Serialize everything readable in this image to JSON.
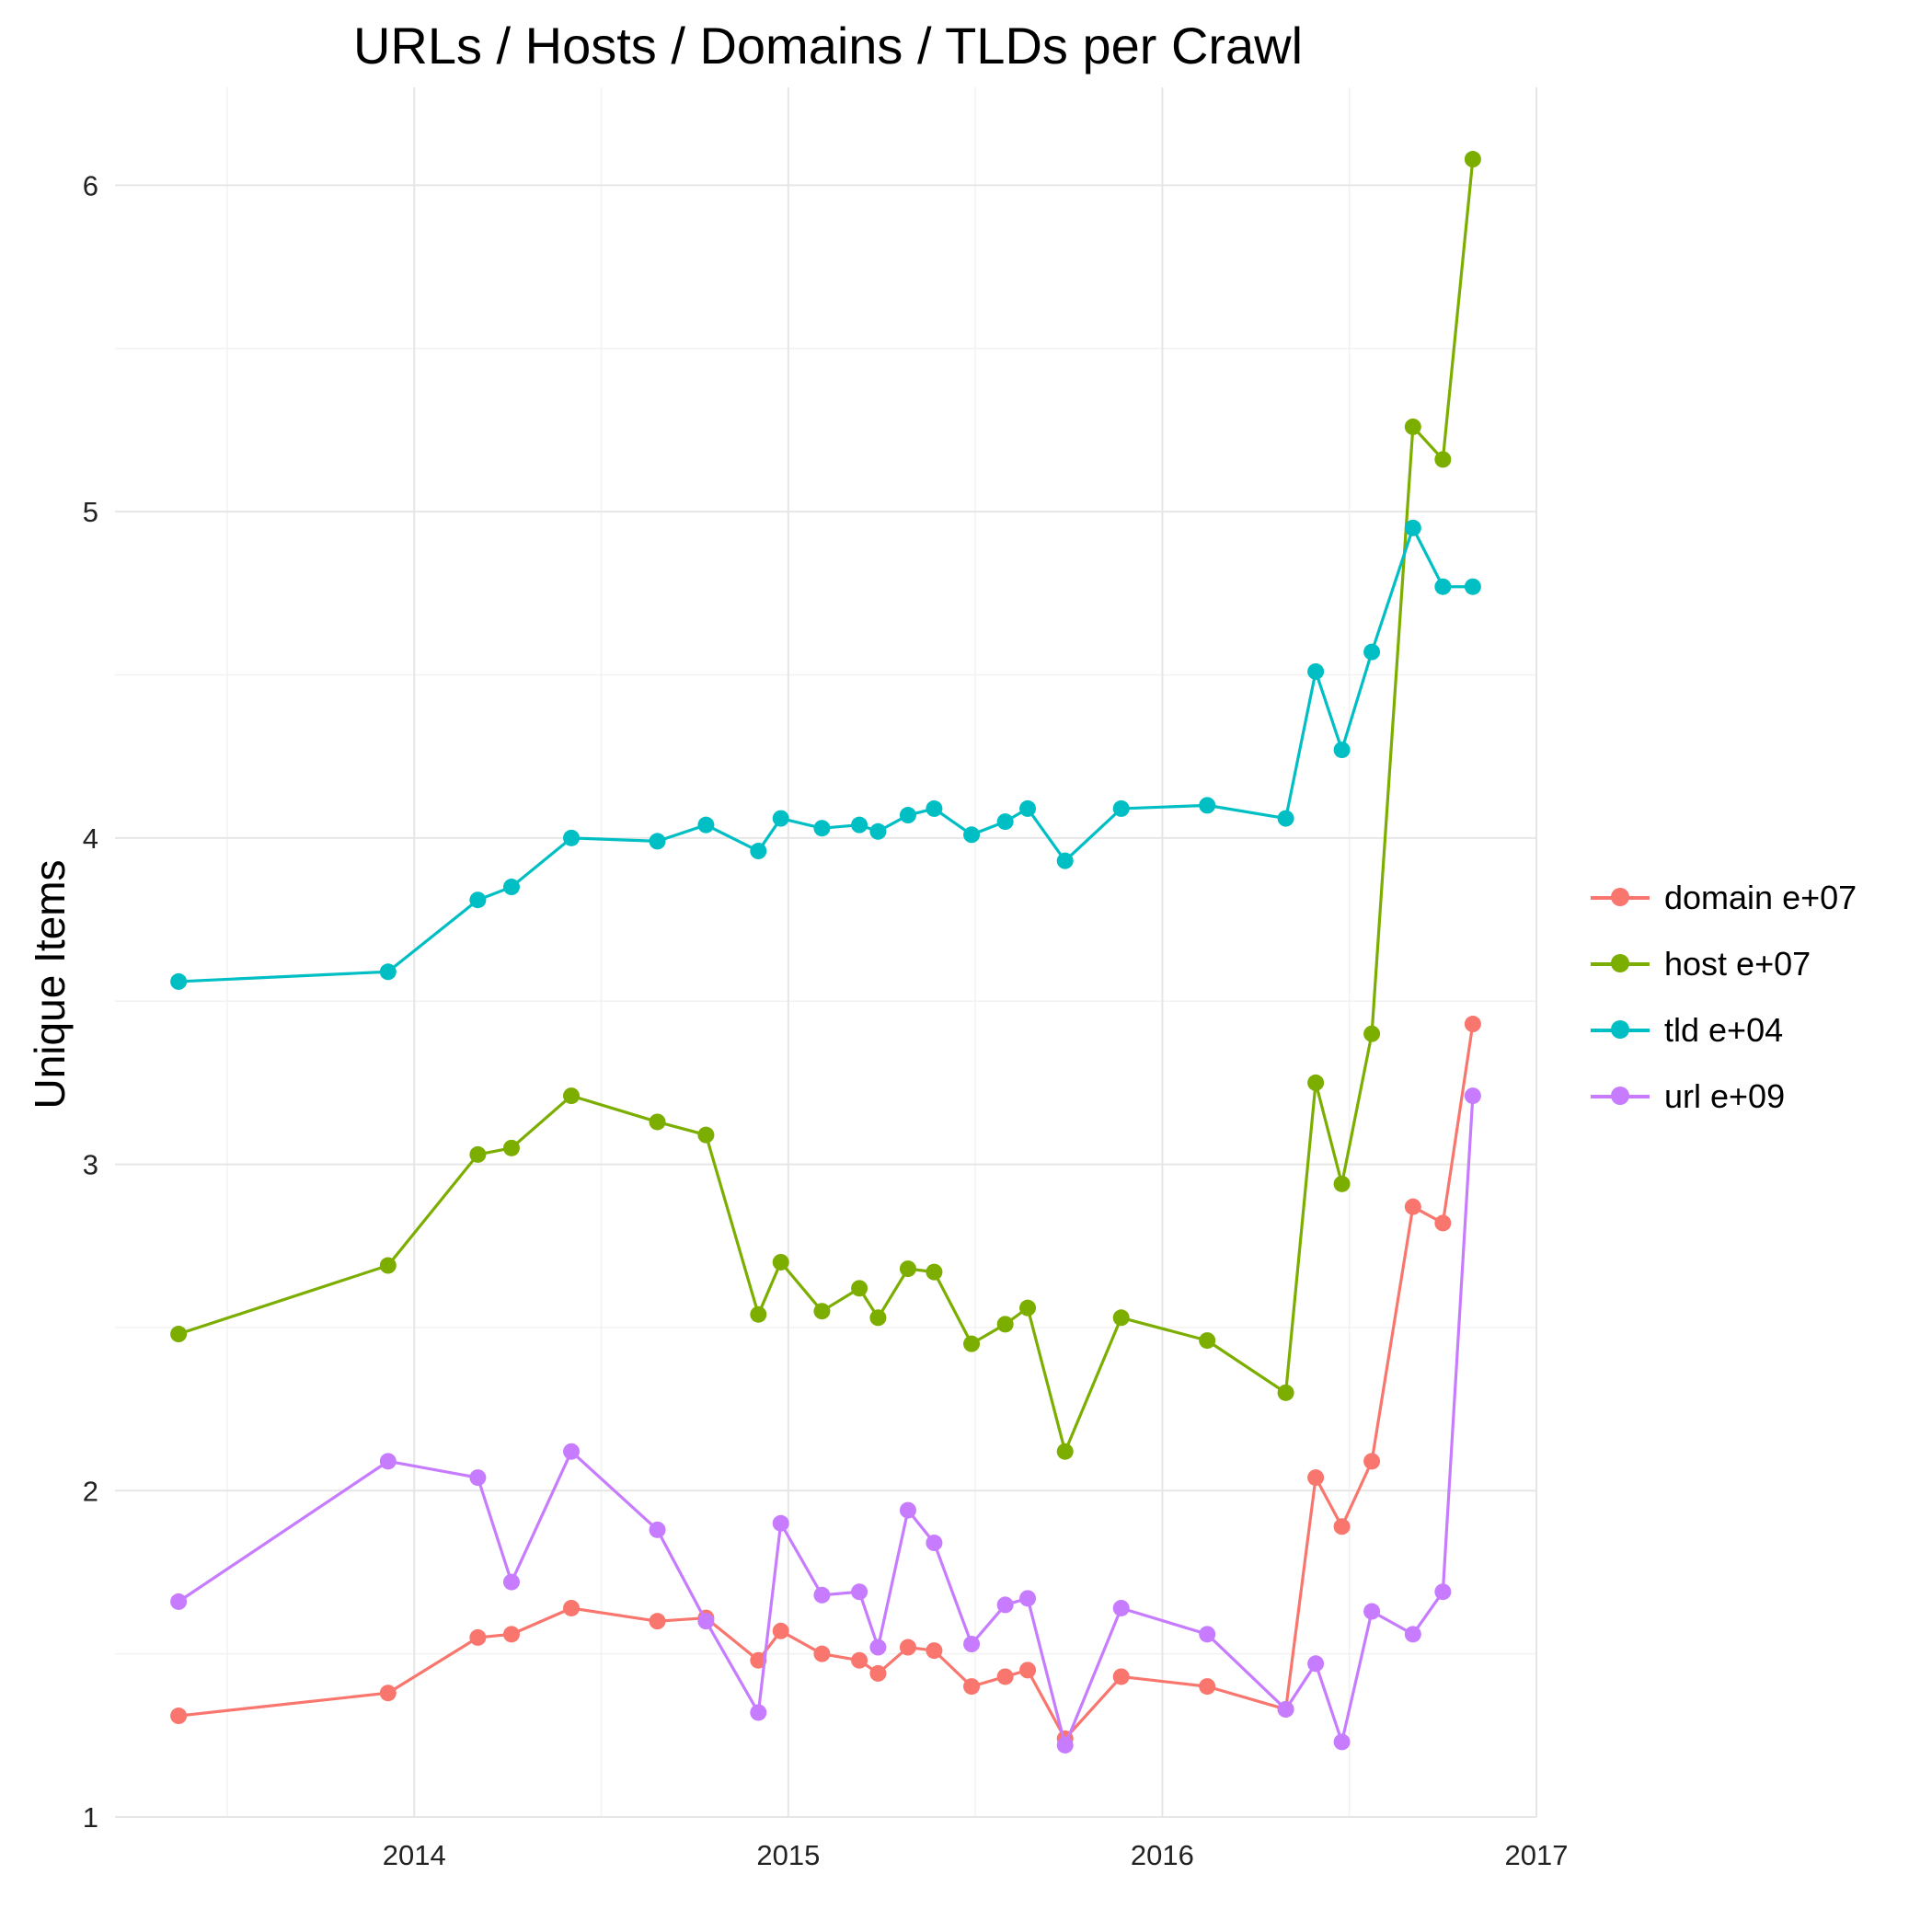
{
  "chart_data": {
    "type": "line",
    "title": "URLs / Hosts / Domains / TLDs per Crawl",
    "xlabel": "",
    "ylabel": "Unique Items",
    "x_ticks": [
      "2014",
      "2015",
      "2016",
      "2017"
    ],
    "y_ticks": [
      "1",
      "2",
      "3",
      "4",
      "5",
      "6"
    ],
    "xlim": [
      2013.2,
      2017.0
    ],
    "ylim": [
      1.0,
      6.3
    ],
    "grid": true,
    "legend_position": "right",
    "x": [
      2013.37,
      2013.93,
      2014.17,
      2014.26,
      2014.42,
      2014.65,
      2014.78,
      2014.92,
      2014.98,
      2015.09,
      2015.19,
      2015.24,
      2015.32,
      2015.39,
      2015.49,
      2015.58,
      2015.64,
      2015.74,
      2015.89,
      2016.12,
      2016.33,
      2016.41,
      2016.48,
      2016.56,
      2016.67,
      2016.75,
      2016.83
    ],
    "series": [
      {
        "name": "domain e+07",
        "color": "#F8766D",
        "values": [
          1.31,
          1.38,
          1.55,
          1.56,
          1.64,
          1.6,
          1.61,
          1.48,
          1.57,
          1.5,
          1.48,
          1.44,
          1.52,
          1.51,
          1.4,
          1.43,
          1.45,
          1.24,
          1.43,
          1.4,
          1.33,
          2.04,
          1.89,
          2.09,
          2.87,
          2.82,
          3.43
        ]
      },
      {
        "name": "host e+07",
        "color": "#7CAE00",
        "values": [
          2.48,
          2.69,
          3.03,
          3.05,
          3.21,
          3.13,
          3.09,
          2.54,
          2.7,
          2.55,
          2.62,
          2.53,
          2.68,
          2.67,
          2.45,
          2.51,
          2.56,
          2.12,
          2.53,
          2.46,
          2.3,
          3.25,
          2.94,
          3.4,
          5.26,
          5.16,
          6.08
        ]
      },
      {
        "name": "tld e+04",
        "color": "#00BFC4",
        "values": [
          3.56,
          3.59,
          3.81,
          3.85,
          4.0,
          3.99,
          4.04,
          3.96,
          4.06,
          4.03,
          4.04,
          4.02,
          4.07,
          4.09,
          4.01,
          4.05,
          4.09,
          3.93,
          4.09,
          4.1,
          4.06,
          4.51,
          4.27,
          4.57,
          4.95,
          4.77,
          4.77
        ]
      },
      {
        "name": "url e+09",
        "color": "#C77CFF",
        "values": [
          1.66,
          2.09,
          2.04,
          1.72,
          2.12,
          1.88,
          1.6,
          1.32,
          1.9,
          1.68,
          1.69,
          1.52,
          1.94,
          1.84,
          1.53,
          1.65,
          1.67,
          1.22,
          1.64,
          1.56,
          1.33,
          1.47,
          1.23,
          1.63,
          1.56,
          1.69,
          3.21
        ]
      }
    ]
  }
}
